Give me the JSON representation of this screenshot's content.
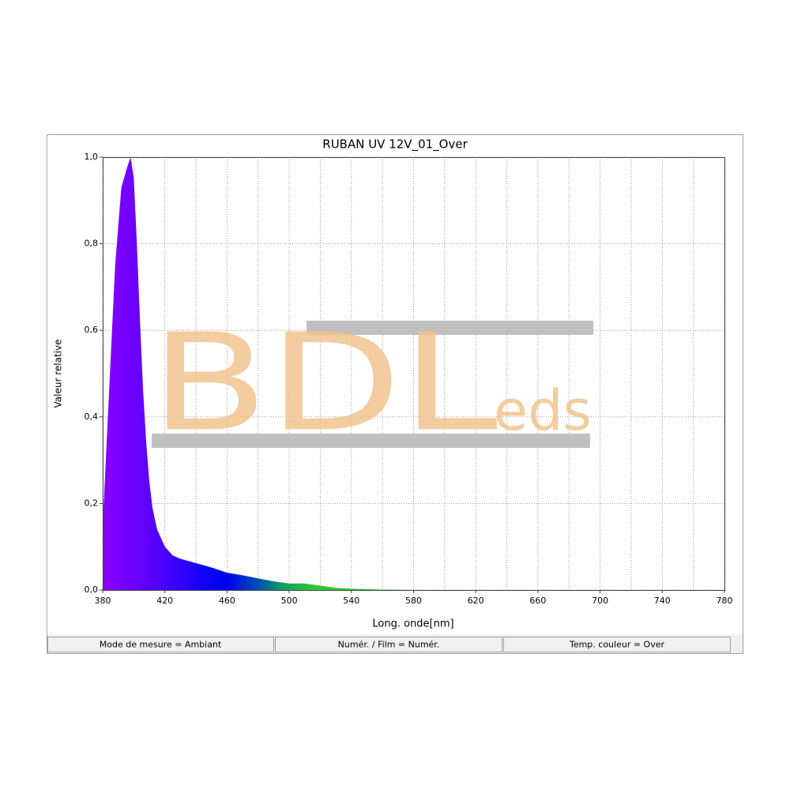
{
  "chart_data": {
    "type": "area",
    "title": "RUBAN UV 12V_01_Over",
    "x_label": "Long. onde[nm]",
    "y_label": "Valeur relative",
    "x": [
      380,
      384,
      388,
      392,
      396,
      398,
      400,
      402,
      404,
      406,
      408,
      410,
      412,
      415,
      420,
      425,
      430,
      440,
      450,
      460,
      470,
      480,
      490,
      500,
      510,
      520,
      530,
      540,
      560,
      580,
      600,
      650,
      700,
      750,
      780
    ],
    "values": [
      0.15,
      0.45,
      0.75,
      0.93,
      0.98,
      1.0,
      0.95,
      0.8,
      0.62,
      0.46,
      0.34,
      0.25,
      0.19,
      0.14,
      0.1,
      0.08,
      0.072,
      0.062,
      0.052,
      0.04,
      0.034,
      0.027,
      0.02,
      0.015,
      0.015,
      0.01,
      0.005,
      0.003,
      0.001,
      0,
      0,
      0,
      0,
      0,
      0
    ],
    "xlim": [
      380,
      780
    ],
    "ylim": [
      0,
      1
    ],
    "xticks": [
      380,
      420,
      460,
      500,
      540,
      580,
      620,
      660,
      700,
      740,
      780
    ],
    "x_minor_ticks": [
      400,
      440,
      480,
      520,
      560,
      600,
      640,
      680,
      720,
      760
    ],
    "yticks": [
      {
        "value": 0,
        "label": "0,0"
      },
      {
        "value": 0.2,
        "label": "0,2"
      },
      {
        "value": 0.4,
        "label": "0,4"
      },
      {
        "value": 0.6,
        "label": "0,6"
      },
      {
        "value": 0.8,
        "label": "0,8"
      },
      {
        "value": 1,
        "label": "1,0"
      }
    ],
    "grid": true
  },
  "watermark": {
    "main": "BDL",
    "suffix": "eds"
  },
  "status_bar": [
    "Mode de mesure = Ambiant",
    "Numér. / Film = Numér.",
    "Temp. couleur = Over"
  ]
}
